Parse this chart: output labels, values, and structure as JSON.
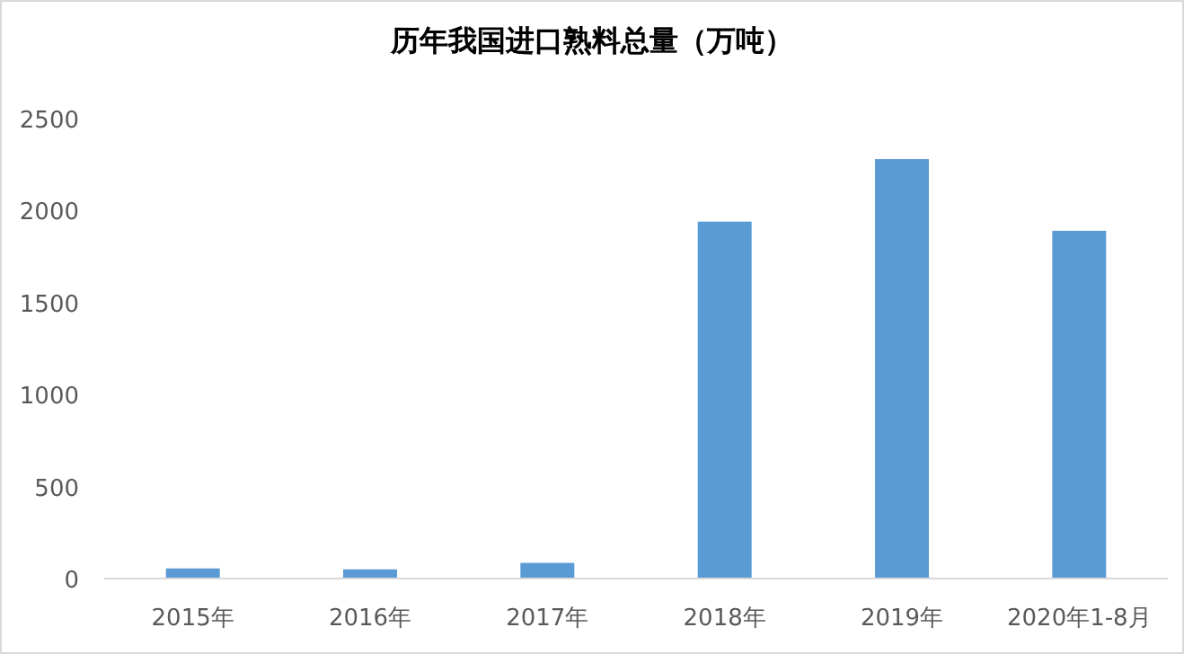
{
  "chart_data": {
    "type": "bar",
    "title": "历年我国进口熟料总量（万吨）",
    "categories": [
      "2015年",
      "2016年",
      "2017年",
      "2018年",
      "2019年",
      "2020年1-8月"
    ],
    "values": [
      55,
      50,
      85,
      1940,
      2280,
      1890
    ],
    "color": "#5b9bd5",
    "ylim": [
      0,
      2500
    ],
    "yticks": [
      0,
      500,
      1000,
      1500,
      2000,
      2500
    ],
    "grid": false
  }
}
